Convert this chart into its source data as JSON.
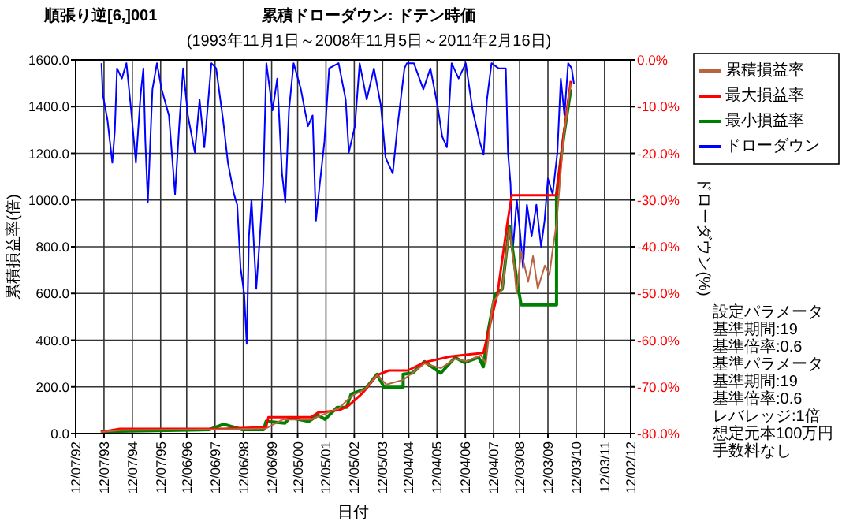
{
  "chart_data": {
    "type": "line",
    "title": [
      "順張り逆[6,]001",
      "累積ドローダウン: ドテン時価"
    ],
    "subtitle": "(1993年11月1日～2008年11月5日～2011年2月16日)",
    "xlabel": "日付",
    "ylabel": "累積損益率(倍)",
    "y2label": "ドローダウン(%)",
    "xlim": [
      "1992-07-12",
      "2012-02-12"
    ],
    "xticks": [
      {
        "value": "1992-07-12",
        "label": "12/07/92"
      },
      {
        "value": "1993-07-12",
        "label": "12/07/93"
      },
      {
        "value": "1994-07-12",
        "label": "12/07/94"
      },
      {
        "value": "1995-07-12",
        "label": "12/07/95"
      },
      {
        "value": "1996-06-12",
        "label": "12/06/96"
      },
      {
        "value": "1997-06-12",
        "label": "12/06/97"
      },
      {
        "value": "1998-06-12",
        "label": "12/06/98"
      },
      {
        "value": "1999-06-12",
        "label": "12/06/99"
      },
      {
        "value": "2000-05-12",
        "label": "12/05/00"
      },
      {
        "value": "2001-05-12",
        "label": "12/05/01"
      },
      {
        "value": "2002-05-12",
        "label": "12/05/02"
      },
      {
        "value": "2003-05-12",
        "label": "12/05/03"
      },
      {
        "value": "2004-04-12",
        "label": "12/04/04"
      },
      {
        "value": "2005-04-12",
        "label": "12/04/05"
      },
      {
        "value": "2006-04-12",
        "label": "12/04/06"
      },
      {
        "value": "2007-04-12",
        "label": "12/04/07"
      },
      {
        "value": "2008-03-12",
        "label": "12/03/08"
      },
      {
        "value": "2009-03-12",
        "label": "12/03/09"
      },
      {
        "value": "2010-03-12",
        "label": "12/03/10"
      },
      {
        "value": "2011-03-12",
        "label": "12/03/11"
      },
      {
        "value": "2012-02-12",
        "label": "12/02/12"
      }
    ],
    "ylim": [
      0,
      1600
    ],
    "yticks": [
      {
        "value": 0,
        "label": "0.0"
      },
      {
        "value": 200,
        "label": "200.0"
      },
      {
        "value": 400,
        "label": "400.0"
      },
      {
        "value": 600,
        "label": "600.0"
      },
      {
        "value": 800,
        "label": "800.0"
      },
      {
        "value": 1000,
        "label": "1000.0"
      },
      {
        "value": 1200,
        "label": "1200.0"
      },
      {
        "value": 1400,
        "label": "1400.0"
      },
      {
        "value": 1600,
        "label": "1600.0"
      }
    ],
    "y2lim": [
      -80,
      0
    ],
    "y2ticks": [
      {
        "value": -80,
        "label": "-80.0%"
      },
      {
        "value": -70,
        "label": "-70.0%"
      },
      {
        "value": -60,
        "label": "-60.0%"
      },
      {
        "value": -50,
        "label": "-50.0%"
      },
      {
        "value": -40,
        "label": "-40.0%"
      },
      {
        "value": -30,
        "label": "-30.0%"
      },
      {
        "value": -20,
        "label": "-20.0%"
      },
      {
        "value": -10,
        "label": "-10.0%"
      },
      {
        "value": 0,
        "label": "0.0%"
      }
    ],
    "grid": true,
    "legend": "top right",
    "annotations": [
      "設定パラメータ",
      "基準期間:19",
      "基準倍率:0.6",
      "基準パラメータ",
      "基準期間:19",
      "基準倍率:0.6",
      "レバレッジ:1倍",
      "想定元本100万円",
      "手数料なし"
    ],
    "series": [
      {
        "name": "累積損益率",
        "color": "#b8653f",
        "x": [
          "1993-06",
          "1994-03",
          "1997-06",
          "1999-04",
          "1999-11",
          "2000-11",
          "2001-05",
          "2001-11",
          "2002-04",
          "2002-10",
          "2003-03",
          "2003-07",
          "2004-02",
          "2004-06",
          "2004-11",
          "2005-06",
          "2005-12",
          "2006-05",
          "2006-11",
          "2007-01",
          "2007-04",
          "2007-08",
          "2007-11",
          "2008-01",
          "2008-02",
          "2008-04",
          "2008-07",
          "2008-09",
          "2008-11",
          "2009-02",
          "2009-04",
          "2009-05",
          "2009-07",
          "2009-10",
          "2010-01"
        ],
        "values": [
          7,
          15,
          18,
          22,
          60,
          60,
          85,
          110,
          160,
          190,
          250,
          210,
          230,
          260,
          300,
          280,
          320,
          310,
          335,
          300,
          560,
          620,
          880,
          720,
          600,
          780,
          650,
          760,
          620,
          720,
          680,
          760,
          900,
          1270,
          1500
        ]
      },
      {
        "name": "最大損益率",
        "color": "#ff0000",
        "x": [
          "1993-06",
          "1994-02",
          "1997-10",
          "1999-04",
          "1999-05",
          "2000-11",
          "2001-02",
          "2001-11",
          "2002-03",
          "2002-09",
          "2003-03",
          "2003-08",
          "2004-04",
          "2004-11",
          "2005-10",
          "2006-07",
          "2006-12",
          "2007-06",
          "2007-10",
          "2007-12",
          "2009-07",
          "2009-10",
          "2010-01"
        ],
        "values": [
          7,
          20,
          20,
          28,
          70,
          70,
          90,
          100,
          120,
          175,
          250,
          270,
          270,
          305,
          330,
          340,
          345,
          600,
          890,
          1020,
          1020,
          1280,
          1510
        ]
      },
      {
        "name": "最小損益率",
        "color": "#008000",
        "x": [
          "1993-06",
          "1994-02",
          "1997-04",
          "1997-10",
          "1998-06",
          "1999-03",
          "1999-04",
          "1999-12",
          "2000-02",
          "2000-10",
          "2001-02",
          "2001-05",
          "2001-10",
          "2002-02",
          "2002-04",
          "2002-10",
          "2003-03",
          "2003-06",
          "2004-02",
          "2004-02",
          "2004-06",
          "2004-11",
          "2005-06",
          "2005-12",
          "2006-04",
          "2006-10",
          "2006-12",
          "2007-02",
          "2007-05",
          "2007-08",
          "2007-11",
          "2008-02",
          "2008-04",
          "2009-07",
          "2009-07",
          "2009-10",
          "2010-01"
        ],
        "values": [
          7,
          10,
          17,
          40,
          17,
          17,
          52,
          45,
          68,
          52,
          79,
          61,
          112,
          112,
          169,
          191,
          254,
          198,
          198,
          254,
          259,
          308,
          259,
          326,
          304,
          326,
          286,
          439,
          596,
          619,
          889,
          664,
          551,
          551,
          1024,
          1271,
          1474
        ]
      },
      {
        "name": "ドローダウン",
        "color": "#0000ff",
        "axis": "y2",
        "x": [
          "1993-06-09",
          "1993-06-27",
          "1993-08-27",
          "1993-10-27",
          "1993-11-28",
          "1993-12-27",
          "1994-02-27",
          "1994-04-27",
          "1994-06-27",
          "1994-08-27",
          "1994-10-27",
          "1994-12-02",
          "1994-12-27",
          "1995-01-28",
          "1995-03-28",
          "1995-05-25",
          "1995-07-25",
          "1995-10-27",
          "1996-01-14",
          "1996-03-07",
          "1996-04-27",
          "1996-06-27",
          "1996-09-25",
          "1996-11-25",
          "1997-01-25",
          "1997-04-26",
          "1997-06-26",
          "1997-09-25",
          "1997-11-25",
          "1998-02-12",
          "1998-03-25",
          "1998-05-07",
          "1998-06-23",
          "1998-07-25",
          "1998-08-23",
          "1998-09-25",
          "1998-11-25",
          "1999-01-07",
          "1999-02-23",
          "1999-04-05",
          "1999-06-23",
          "1999-08-23",
          "1999-10-23",
          "1999-12-05",
          "2000-01-21",
          "2000-03-21",
          "2000-06-23",
          "2000-09-21",
          "2000-11-21",
          "2001-01-03",
          "2001-02-22",
          "2001-04-22",
          "2001-06-22",
          "2001-10-22",
          "2002-01-21",
          "2002-03-03",
          "2002-05-20",
          "2002-07-20",
          "2002-10-19",
          "2003-01-20",
          "2003-04-19",
          "2003-06-19",
          "2003-09-20",
          "2003-11-20",
          "2004-02-18",
          "2004-03-20",
          "2004-06-18",
          "2004-10-18",
          "2005-01-17",
          "2005-04-18",
          "2005-06-18",
          "2005-08-18",
          "2005-10-18",
          "2006-01-16",
          "2006-04-18",
          "2006-07-16",
          "2006-10-15",
          "2006-12-04",
          "2007-01-16",
          "2007-03-16",
          "2007-06-14",
          "2007-09-16",
          "2007-10-14",
          "2007-11-16",
          "2007-12-14",
          "2008-02-04",
          "2008-03-16",
          "2008-04-25",
          "2008-06-14",
          "2008-08-14",
          "2008-10-14",
          "2008-12-14",
          "2009-01-28",
          "2009-03-12",
          "2009-05-12",
          "2009-07-12",
          "2009-08-25",
          "2009-10-11",
          "2009-11-28",
          "2010-01-12",
          "2010-02-11"
        ],
        "values": [
          -0.7,
          -7.4,
          -13.0,
          -22.0,
          -15.3,
          -1.8,
          -4.0,
          -0.7,
          -10.8,
          -22.0,
          -7.4,
          -1.8,
          -17.5,
          -30.4,
          -6.3,
          -0.7,
          -6.3,
          -11.9,
          -28.8,
          -14.2,
          -1.8,
          -11.9,
          -19.8,
          -8.5,
          -18.7,
          -0.7,
          -1.8,
          -13.0,
          -22.0,
          -28.8,
          -31.0,
          -44.5,
          -50.1,
          -60.8,
          -37.8,
          -29.9,
          -49.0,
          -38.9,
          -26.5,
          -0.7,
          -10.8,
          -4.0,
          -24.3,
          -30.4,
          -10.8,
          -0.7,
          -6.3,
          -14.2,
          -11.9,
          -34.4,
          -26.5,
          -17.5,
          -1.8,
          -0.7,
          -8.5,
          -19.8,
          -14.2,
          -0.7,
          -8.5,
          -1.8,
          -9.7,
          -20.9,
          -24.3,
          -14.2,
          -1.8,
          -0.7,
          -0.7,
          -6.3,
          -1.8,
          -9.7,
          -16.4,
          -18.7,
          -0.7,
          -4.0,
          -0.7,
          -10.8,
          -17.5,
          -20.3,
          -8.5,
          -0.7,
          -1.8,
          -1.8,
          -19.8,
          -26.5,
          -41.1,
          -29.9,
          -36.6,
          -44.5,
          -31.0,
          -37.8,
          -31.0,
          -40.0,
          -34.4,
          -25.4,
          -28.8,
          -19.8,
          -4.0,
          -11.9,
          -0.7,
          -1.8,
          -5.2
        ]
      }
    ]
  }
}
